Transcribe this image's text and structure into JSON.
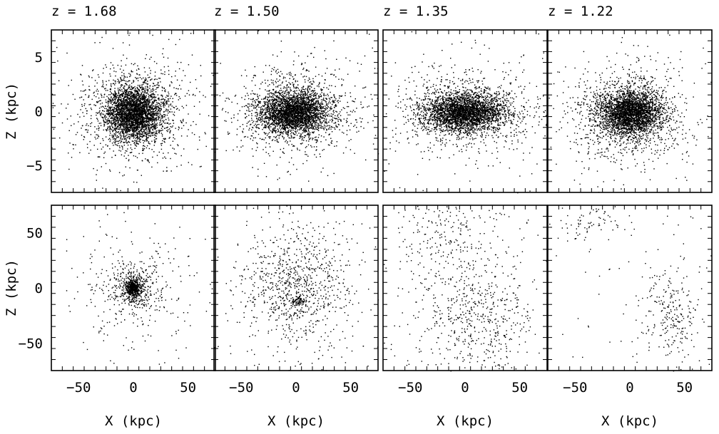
{
  "chart_data": [
    {
      "type": "scatter",
      "panel": "top-1",
      "title": "z = 1.68",
      "xlabel": "",
      "ylabel": "Z (kpc)",
      "xlim": [
        -7.5,
        7.5
      ],
      "ylim": [
        -7.5,
        7.5
      ],
      "xticks": [
        -5,
        0,
        5
      ],
      "yticks": [
        -5,
        0,
        5
      ],
      "ytick_labels": [
        "−5",
        "0",
        "5"
      ],
      "grid": false,
      "clusters": [
        {
          "cx": 0.0,
          "cy": -0.2,
          "sx": 1.2,
          "sy": 1.2,
          "n": 2600
        },
        {
          "cx": 0.0,
          "cy": 0.0,
          "sx": 2.4,
          "sy": 2.2,
          "n": 1100
        },
        {
          "cx": 0.0,
          "cy": 0.0,
          "sx": 4.5,
          "sy": 4.5,
          "n": 160
        }
      ],
      "seed": 11
    },
    {
      "type": "scatter",
      "panel": "top-2",
      "title": "z = 1.50",
      "xlabel": "",
      "ylabel": "",
      "xlim": [
        -7.5,
        7.5
      ],
      "ylim": [
        -7.5,
        7.5
      ],
      "grid": false,
      "clusters": [
        {
          "cx": -0.3,
          "cy": -0.1,
          "sx": 1.5,
          "sy": 0.9,
          "n": 2400
        },
        {
          "cx": 0.0,
          "cy": 0.0,
          "sx": 2.8,
          "sy": 1.9,
          "n": 1100
        },
        {
          "cx": 0.0,
          "cy": 0.0,
          "sx": 4.8,
          "sy": 4.2,
          "n": 160
        }
      ],
      "seed": 23
    },
    {
      "type": "scatter",
      "panel": "top-3",
      "title": "z = 1.35",
      "xlabel": "",
      "ylabel": "",
      "xlim": [
        -7.5,
        7.5
      ],
      "ylim": [
        -7.5,
        7.5
      ],
      "grid": false,
      "clusters": [
        {
          "cx": -0.2,
          "cy": -0.1,
          "sx": 1.7,
          "sy": 0.8,
          "n": 2400
        },
        {
          "cx": 0.0,
          "cy": 0.0,
          "sx": 3.0,
          "sy": 1.7,
          "n": 1100
        },
        {
          "cx": 0.0,
          "cy": 0.0,
          "sx": 5.0,
          "sy": 4.0,
          "n": 160
        }
      ],
      "seed": 37
    },
    {
      "type": "scatter",
      "panel": "top-4",
      "title": "z = 1.22",
      "xlabel": "",
      "ylabel": "",
      "xlim": [
        -7.5,
        7.5
      ],
      "ylim": [
        -7.5,
        7.5
      ],
      "grid": false,
      "clusters": [
        {
          "cx": 0.0,
          "cy": -0.1,
          "sx": 1.4,
          "sy": 1.0,
          "n": 2400
        },
        {
          "cx": 0.0,
          "cy": -0.3,
          "sx": 2.6,
          "sy": 2.0,
          "n": 1100
        },
        {
          "cx": 0.0,
          "cy": 0.0,
          "sx": 4.6,
          "sy": 4.2,
          "n": 160
        }
      ],
      "seed": 41
    },
    {
      "type": "scatter",
      "panel": "bottom-1",
      "title": "",
      "xlabel": "X (kpc)",
      "ylabel": "Z (kpc)",
      "xlim": [
        -75,
        75
      ],
      "ylim": [
        -75,
        75
      ],
      "xticks": [
        -50,
        0,
        50
      ],
      "yticks": [
        -50,
        0,
        50
      ],
      "xtick_labels": [
        "−50",
        "0",
        "50"
      ],
      "ytick_labels": [
        "−50",
        "0",
        "50"
      ],
      "grid": false,
      "clusters": [
        {
          "cx": 0.0,
          "cy": 0.0,
          "sx": 3.5,
          "sy": 4.5,
          "n": 380
        },
        {
          "cx": 0.0,
          "cy": 0.0,
          "sx": 12.0,
          "sy": 12.0,
          "n": 420
        },
        {
          "cx": 0.0,
          "cy": 0.0,
          "sx": 32.0,
          "sy": 32.0,
          "n": 230
        }
      ],
      "seed": 53
    },
    {
      "type": "scatter",
      "panel": "bottom-2",
      "title": "",
      "xlabel": "X (kpc)",
      "ylabel": "",
      "xlim": [
        -75,
        75
      ],
      "ylim": [
        -75,
        75
      ],
      "xticks": [
        -50,
        0,
        50
      ],
      "xtick_labels": [
        "−50",
        "0",
        "50"
      ],
      "grid": false,
      "clusters": [
        {
          "cx": 2.0,
          "cy": -12.0,
          "sx": 3.0,
          "sy": 2.5,
          "n": 70
        },
        {
          "cx": 0.0,
          "cy": 0.0,
          "sx": 22.0,
          "sy": 26.0,
          "n": 720
        },
        {
          "cx": 0.0,
          "cy": 0.0,
          "sx": 45.0,
          "sy": 45.0,
          "n": 260
        }
      ],
      "seed": 67
    },
    {
      "type": "scatter",
      "panel": "bottom-3",
      "title": "",
      "xlabel": "X (kpc)",
      "ylabel": "",
      "xlim": [
        -75,
        75
      ],
      "ylim": [
        -75,
        75
      ],
      "xticks": [
        -50,
        0,
        50
      ],
      "xtick_labels": [
        "−50",
        "0",
        "50"
      ],
      "grid": false,
      "clusters": [
        {
          "cx": 10.0,
          "cy": -25.0,
          "sx": 25.0,
          "sy": 25.0,
          "n": 450
        },
        {
          "cx": -20.0,
          "cy": 45.0,
          "sx": 20.0,
          "sy": 18.0,
          "n": 180
        },
        {
          "cx": 0.0,
          "cy": 0.0,
          "sx": 60.0,
          "sy": 60.0,
          "n": 320
        }
      ],
      "seed": 79
    },
    {
      "type": "scatter",
      "panel": "bottom-4",
      "title": "",
      "xlabel": "X (kpc)",
      "ylabel": "",
      "xlim": [
        -75,
        75
      ],
      "ylim": [
        -75,
        75
      ],
      "xticks": [
        -50,
        0,
        50
      ],
      "xtick_labels": [
        "−50",
        "0",
        "50"
      ],
      "grid": false,
      "clusters": [
        {
          "cx": 35.0,
          "cy": -25.0,
          "sx": 14.0,
          "sy": 25.0,
          "n": 240
        },
        {
          "cx": -30.0,
          "cy": 60.0,
          "sx": 18.0,
          "sy": 8.0,
          "n": 70
        },
        {
          "cx": 0.0,
          "cy": 0.0,
          "sx": 75.0,
          "sy": 75.0,
          "n": 120
        }
      ],
      "seed": 97
    }
  ]
}
